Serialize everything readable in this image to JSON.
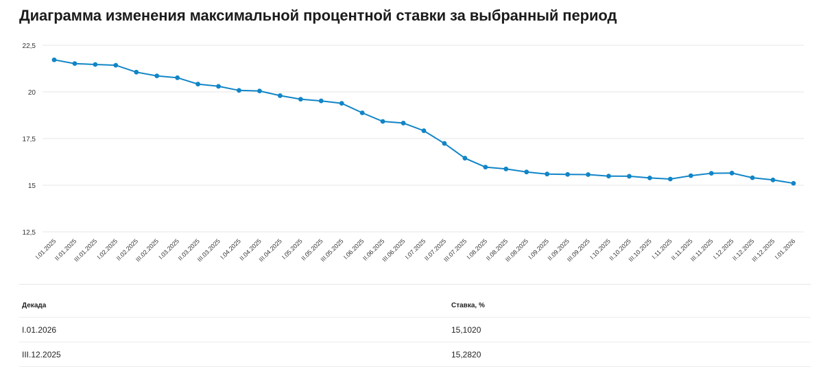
{
  "page": {
    "title": "Диаграмма изменения максимальной процентной ставки за выбранный период"
  },
  "chart_data": {
    "type": "line",
    "title": "",
    "xlabel": "",
    "ylabel": "",
    "ylim": [
      12.5,
      22.5
    ],
    "yticks": [
      "22,5",
      "20",
      "17,5",
      "15",
      "12,5"
    ],
    "ytick_values": [
      22.5,
      20,
      17.5,
      15,
      12.5
    ],
    "grid": true,
    "line_color": "#1185c7",
    "categories": [
      "I.01.2025",
      "II.01.2025",
      "III.01.2025",
      "I.02.2025",
      "II.02.2025",
      "III.02.2025",
      "I.03.2025",
      "II.03.2025",
      "III.03.2025",
      "I.04.2025",
      "II.04.2025",
      "III.04.2025",
      "I.05.2025",
      "II.05.2025",
      "III.05.2025",
      "I.06.2025",
      "II.06.2025",
      "III.06.2025",
      "I.07.2025",
      "II.07.2025",
      "III.07.2025",
      "I.08.2025",
      "II.08.2025",
      "III.08.2025",
      "I.09.2025",
      "II.09.2025",
      "III.09.2025",
      "I.10.2025",
      "II.10.2025",
      "III.10.2025",
      "I.11.2025",
      "II.11.2025",
      "III.11.2025",
      "I.12.2025",
      "II.12.2025",
      "III.12.2025",
      "I.01.2026"
    ],
    "series": [
      {
        "values": [
          21.72,
          21.52,
          21.47,
          21.43,
          21.06,
          20.86,
          20.76,
          20.42,
          20.3,
          20.08,
          20.05,
          19.8,
          19.61,
          19.52,
          19.39,
          18.88,
          18.42,
          18.33,
          17.92,
          17.24,
          16.45,
          15.97,
          15.87,
          15.71,
          15.6,
          15.58,
          15.57,
          15.49,
          15.48,
          15.39,
          15.33,
          15.51,
          15.64,
          15.65,
          15.4,
          15.282,
          15.102
        ]
      }
    ]
  },
  "table": {
    "headers": {
      "period": "Декада",
      "rate": "Ставка, %"
    },
    "rows": [
      {
        "period": "I.01.2026",
        "rate": "15,1020"
      },
      {
        "period": "III.12.2025",
        "rate": "15,2820"
      }
    ]
  }
}
